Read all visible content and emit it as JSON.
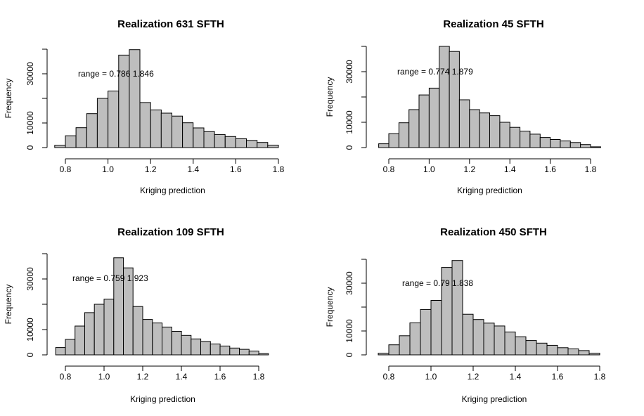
{
  "chart_data": [
    {
      "type": "bar",
      "title": "Realization 631 SFTH",
      "xlabel": "Kriging prediction",
      "ylabel": "Frequency",
      "annotation": "range = 0.786 1.846",
      "bin_start": 0.75,
      "bin_width": 0.05,
      "values": [
        900,
        4800,
        8100,
        13800,
        20000,
        23000,
        37600,
        39800,
        18300,
        15300,
        14000,
        12800,
        10100,
        8000,
        6500,
        5300,
        4500,
        3600,
        2900,
        2100,
        1000
      ],
      "xticks": [
        "0.8",
        "1.0",
        "1.2",
        "1.4",
        "1.6",
        "1.8"
      ],
      "yticks": [
        "0",
        "10000",
        "30000"
      ],
      "xlim": [
        0.75,
        1.85
      ],
      "ylim": [
        0,
        40000
      ]
    },
    {
      "type": "bar",
      "title": "Realization 45 SFTH",
      "xlabel": "Kriging prediction",
      "ylabel": "Frequency",
      "annotation": "range = 0.774 1.879",
      "bin_start": 0.75,
      "bin_width": 0.05,
      "values": [
        1500,
        5500,
        9800,
        15000,
        20800,
        23500,
        40000,
        38000,
        18900,
        15000,
        13700,
        12600,
        10000,
        8000,
        6500,
        5300,
        4000,
        3200,
        2600,
        2000,
        1200,
        300
      ],
      "xticks": [
        "0.8",
        "1.0",
        "1.2",
        "1.4",
        "1.6",
        "1.8"
      ],
      "yticks": [
        "0",
        "10000",
        "30000"
      ],
      "xlim": [
        0.75,
        1.85
      ],
      "ylim": [
        0,
        40000
      ]
    },
    {
      "type": "bar",
      "title": "Realization 109 SFTH",
      "xlabel": "Kriging prediction",
      "ylabel": "Frequency",
      "annotation": "range = 0.759 1.923",
      "bin_start": 0.75,
      "bin_width": 0.05,
      "values": [
        2900,
        6100,
        11400,
        16700,
        20000,
        22000,
        38400,
        34400,
        19100,
        14000,
        12600,
        11000,
        9300,
        7700,
        6300,
        5300,
        4300,
        3500,
        2700,
        2200,
        1500,
        500
      ],
      "xticks": [
        "0.8",
        "1.0",
        "1.2",
        "1.4",
        "1.6",
        "1.8"
      ],
      "yticks": [
        "0",
        "10000",
        "30000"
      ],
      "xlim": [
        0.75,
        1.85
      ],
      "ylim": [
        0,
        40000
      ]
    },
    {
      "type": "bar",
      "title": "Realization 450 SFTH",
      "xlabel": "Kriging prediction",
      "ylabel": "Frequency",
      "annotation": "range = 0.79 1.838",
      "bin_start": 0.75,
      "bin_width": 0.05,
      "values": [
        700,
        4200,
        8000,
        13400,
        19000,
        22800,
        36600,
        39500,
        17000,
        14800,
        13300,
        12100,
        9600,
        7600,
        6000,
        4900,
        4000,
        3000,
        2500,
        1800,
        700
      ],
      "xticks": [
        "0.8",
        "1.0",
        "1.2",
        "1.4",
        "1.6",
        "1.8"
      ],
      "yticks": [
        "0",
        "10000",
        "30000"
      ],
      "xlim": [
        0.75,
        1.85
      ],
      "ylim": [
        0,
        40000
      ]
    }
  ]
}
